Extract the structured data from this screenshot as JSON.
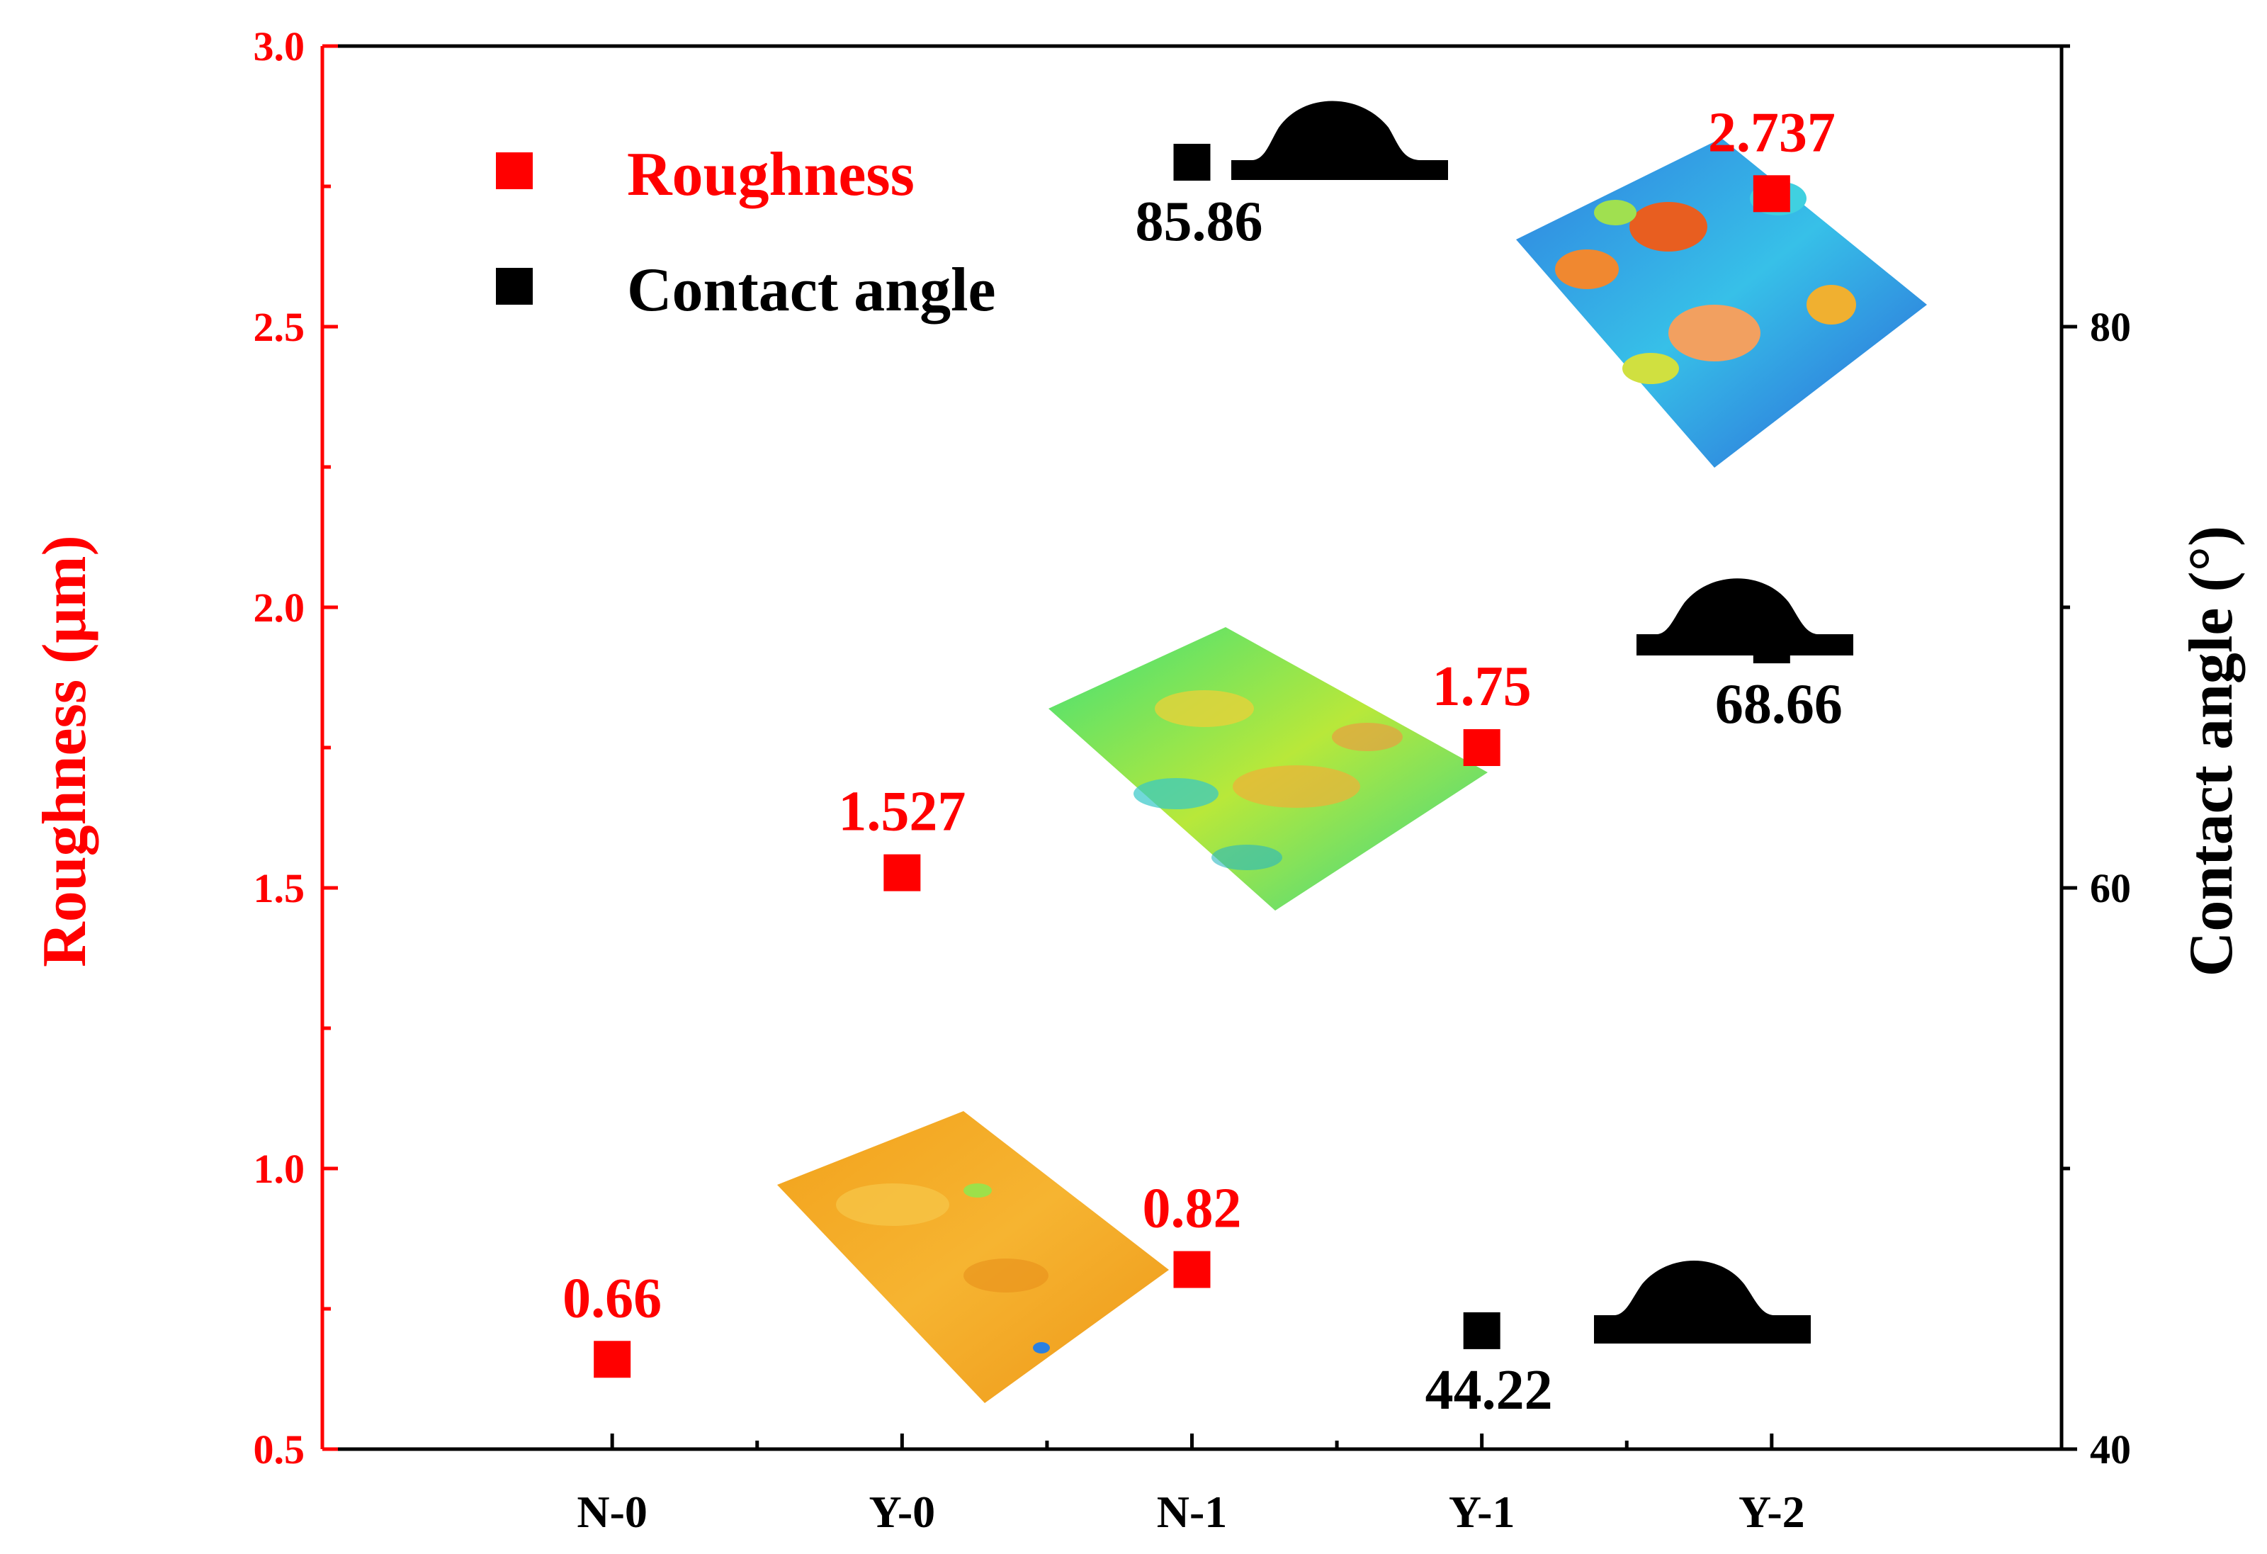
{
  "chart_data": {
    "type": "scatter",
    "categories": [
      "N-0",
      "Y-0",
      "N-1",
      "Y-1",
      "Y-2"
    ],
    "series": [
      {
        "name": "Roughness",
        "axis": "left",
        "color": "#ff0000",
        "values": [
          0.66,
          1.527,
          0.82,
          1.75,
          2.737
        ],
        "labels": [
          "0.66",
          "1.527",
          "0.82",
          "1.75",
          "2.737"
        ]
      },
      {
        "name": "Contact angle",
        "axis": "right",
        "color": "#000000",
        "points": [
          {
            "category": "N-1",
            "value": 85.86,
            "label": "85.86"
          },
          {
            "category": "Y-2",
            "value": 68.66,
            "label": "68.66"
          },
          {
            "category": "Y-1",
            "value": 44.22,
            "label": "44.22"
          }
        ]
      }
    ],
    "ylabel_left": "Roughness (μm)",
    "ylabel_right": "Contact angle (°)",
    "ylim_left": [
      0.5,
      3.0
    ],
    "ylim_right": [
      40,
      90
    ],
    "yticks_left": [
      "0.5",
      "1.0",
      "1.5",
      "2.0",
      "2.5",
      "3.0"
    ],
    "yticks_right": [
      "40",
      "60",
      "80"
    ],
    "legend": {
      "position": "top-left",
      "entries": [
        "Roughness",
        "Contact angle"
      ]
    },
    "grid": false,
    "insets": [
      "surface-topography-3d-map",
      "water-droplet-silhouette"
    ]
  }
}
